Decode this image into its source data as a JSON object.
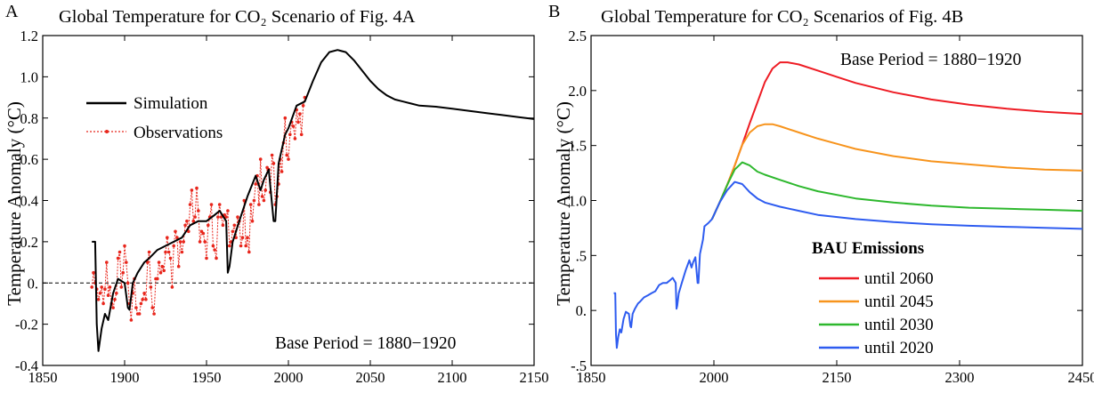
{
  "chart_data": [
    {
      "type": "line",
      "panel_letter": "A",
      "title": "Global Temperature for CO₂ Scenario of Fig. 4A",
      "xlabel": "",
      "ylabel": "Temperature Anomaly (°C)",
      "xlim": [
        1850,
        2150
      ],
      "ylim": [
        -0.4,
        1.2
      ],
      "x_ticks": [
        "1850",
        "1900",
        "1950",
        "2000",
        "2050",
        "2100",
        "2150"
      ],
      "y_ticks": [
        "-0.4",
        "-0.2",
        "0.",
        "0.2",
        "0.4",
        "0.6",
        "0.8",
        "1.0",
        "1.2"
      ],
      "zero_line": true,
      "annotation": "Base Period = 1880−1920",
      "legend_placement": "upper-left",
      "series": [
        {
          "name": "Simulation",
          "color": "#000000",
          "style": "solid",
          "x": [
            1880,
            1882,
            1883,
            1884,
            1886,
            1888,
            1890,
            1893,
            1896,
            1900,
            1902,
            1903,
            1905,
            1908,
            1912,
            1915,
            1920,
            1925,
            1930,
            1935,
            1940,
            1945,
            1950,
            1955,
            1958,
            1962,
            1963,
            1964,
            1966,
            1970,
            1975,
            1980,
            1983,
            1985,
            1988,
            1991,
            1992,
            1994,
            1998,
            2000,
            2005,
            2010,
            2015,
            2020,
            2025,
            2030,
            2035,
            2040,
            2045,
            2050,
            2055,
            2060,
            2065,
            2070,
            2075,
            2080,
            2090,
            2100,
            2110,
            2120,
            2130,
            2140,
            2150
          ],
          "y": [
            0.2,
            0.2,
            -0.2,
            -0.33,
            -0.22,
            -0.15,
            -0.18,
            -0.05,
            0.02,
            0.0,
            -0.12,
            -0.13,
            0.0,
            0.05,
            0.1,
            0.12,
            0.16,
            0.18,
            0.2,
            0.22,
            0.28,
            0.3,
            0.3,
            0.33,
            0.35,
            0.3,
            0.05,
            0.08,
            0.2,
            0.3,
            0.42,
            0.52,
            0.45,
            0.5,
            0.55,
            0.3,
            0.3,
            0.58,
            0.72,
            0.75,
            0.86,
            0.88,
            0.98,
            1.07,
            1.12,
            1.13,
            1.12,
            1.08,
            1.03,
            0.98,
            0.94,
            0.91,
            0.89,
            0.88,
            0.87,
            0.86,
            0.855,
            0.845,
            0.835,
            0.825,
            0.815,
            0.805,
            0.795
          ]
        },
        {
          "name": "Observations",
          "color": "#e8261c",
          "style": "dotted-with-markers",
          "x": [
            1880,
            1881,
            1882,
            1883,
            1884,
            1885,
            1886,
            1887,
            1888,
            1889,
            1890,
            1891,
            1892,
            1893,
            1894,
            1895,
            1896,
            1897,
            1898,
            1899,
            1900,
            1901,
            1902,
            1903,
            1904,
            1905,
            1906,
            1907,
            1908,
            1909,
            1910,
            1911,
            1912,
            1913,
            1914,
            1915,
            1916,
            1917,
            1918,
            1919,
            1920,
            1921,
            1922,
            1923,
            1924,
            1925,
            1926,
            1927,
            1928,
            1929,
            1930,
            1931,
            1932,
            1933,
            1934,
            1935,
            1936,
            1937,
            1938,
            1939,
            1940,
            1941,
            1942,
            1943,
            1944,
            1945,
            1946,
            1947,
            1948,
            1949,
            1950,
            1951,
            1952,
            1953,
            1954,
            1955,
            1956,
            1957,
            1958,
            1959,
            1960,
            1961,
            1962,
            1963,
            1964,
            1965,
            1966,
            1967,
            1968,
            1969,
            1970,
            1971,
            1972,
            1973,
            1974,
            1975,
            1976,
            1977,
            1978,
            1979,
            1980,
            1981,
            1982,
            1983,
            1984,
            1985,
            1986,
            1987,
            1988,
            1989,
            1990,
            1991,
            1992,
            1993,
            1994,
            1995,
            1996,
            1997,
            1998,
            1999,
            2000,
            2001,
            2002,
            2003,
            2004,
            2005,
            2006,
            2007,
            2008,
            2009,
            2010
          ],
          "y": [
            -0.02,
            0.05,
            0.0,
            -0.03,
            -0.08,
            -0.05,
            -0.02,
            -0.1,
            -0.03,
            0.1,
            -0.06,
            -0.02,
            -0.1,
            -0.12,
            -0.08,
            -0.05,
            0.12,
            0.15,
            -0.02,
            0.05,
            0.18,
            0.1,
            0.0,
            -0.1,
            -0.18,
            -0.05,
            0.02,
            -0.12,
            -0.15,
            -0.15,
            -0.1,
            -0.08,
            -0.05,
            -0.08,
            0.1,
            0.15,
            -0.02,
            -0.12,
            -0.15,
            0.02,
            0.02,
            0.1,
            0.05,
            0.08,
            0.06,
            0.15,
            0.22,
            0.15,
            0.12,
            -0.02,
            0.18,
            0.25,
            0.22,
            0.08,
            0.2,
            0.15,
            0.2,
            0.28,
            0.3,
            0.25,
            0.38,
            0.45,
            0.3,
            0.32,
            0.46,
            0.35,
            0.2,
            0.25,
            0.24,
            0.2,
            0.12,
            0.28,
            0.32,
            0.38,
            0.18,
            0.16,
            0.12,
            0.32,
            0.38,
            0.32,
            0.28,
            0.33,
            0.32,
            0.35,
            0.18,
            0.2,
            0.25,
            0.28,
            0.22,
            0.32,
            0.3,
            0.18,
            0.22,
            0.4,
            0.18,
            0.22,
            0.15,
            0.38,
            0.3,
            0.4,
            0.48,
            0.52,
            0.38,
            0.6,
            0.42,
            0.4,
            0.45,
            0.56,
            0.55,
            0.44,
            0.62,
            0.58,
            0.38,
            0.42,
            0.48,
            0.6,
            0.54,
            0.68,
            0.8,
            0.62,
            0.6,
            0.72,
            0.78,
            0.76,
            0.7,
            0.84,
            0.78,
            0.82,
            0.72,
            0.86,
            0.9
          ]
        }
      ]
    },
    {
      "type": "line",
      "panel_letter": "B",
      "title": "Global Temperature for CO₂ Scenarios of Fig. 4B",
      "xlabel": "",
      "ylabel": "Temperature Anomaly (°C)",
      "xlim": [
        1850,
        2500
      ],
      "ylim": [
        -0.5,
        2.7
      ],
      "x_ticks": [
        "1850",
        "2000",
        "2150",
        "2300",
        "2450"
      ],
      "y_ticks": [
        "-.5",
        "0.",
        ".5",
        "1.0",
        "1.5",
        "2.0",
        "2.5"
      ],
      "annotation": "Base Period = 1880−1920",
      "legend_title": "BAU Emissions",
      "legend_placement": "lower-right",
      "history": {
        "x": [
          1880,
          1882,
          1883,
          1884,
          1886,
          1888,
          1890,
          1893,
          1896,
          1900,
          1902,
          1903,
          1905,
          1908,
          1912,
          1915,
          1920,
          1925,
          1930,
          1935,
          1940,
          1945,
          1950,
          1955,
          1958,
          1962,
          1963,
          1964,
          1966,
          1970,
          1975,
          1980,
          1983,
          1985,
          1988,
          1991,
          1992,
          1994,
          1998,
          2000,
          2005,
          2010
        ],
        "y": [
          0.2,
          0.2,
          -0.2,
          -0.33,
          -0.22,
          -0.15,
          -0.18,
          -0.05,
          0.02,
          0.0,
          -0.12,
          -0.13,
          0.0,
          0.05,
          0.1,
          0.12,
          0.16,
          0.18,
          0.2,
          0.22,
          0.28,
          0.3,
          0.3,
          0.33,
          0.35,
          0.3,
          0.05,
          0.08,
          0.2,
          0.3,
          0.42,
          0.52,
          0.45,
          0.5,
          0.55,
          0.3,
          0.3,
          0.58,
          0.72,
          0.85,
          0.88,
          0.92
        ]
      },
      "series": [
        {
          "name": "until 2060",
          "color": "#ee1c24",
          "x": [
            2010,
            2020,
            2030,
            2040,
            2050,
            2060,
            2070,
            2080,
            2090,
            2100,
            2110,
            2125,
            2150,
            2175,
            2200,
            2250,
            2300,
            2350,
            2400,
            2450,
            2500
          ],
          "y": [
            0.92,
            1.08,
            1.25,
            1.44,
            1.64,
            1.85,
            2.05,
            2.25,
            2.38,
            2.44,
            2.44,
            2.42,
            2.36,
            2.3,
            2.24,
            2.15,
            2.08,
            2.03,
            1.99,
            1.96,
            1.94
          ]
        },
        {
          "name": "until 2045",
          "color": "#f7941d",
          "x": [
            2010,
            2020,
            2030,
            2040,
            2045,
            2050,
            2060,
            2070,
            2080,
            2090,
            2100,
            2125,
            2150,
            2175,
            2200,
            2250,
            2300,
            2350,
            2400,
            2450,
            2500
          ],
          "y": [
            0.92,
            1.08,
            1.25,
            1.44,
            1.54,
            1.64,
            1.76,
            1.82,
            1.84,
            1.84,
            1.82,
            1.76,
            1.7,
            1.65,
            1.6,
            1.53,
            1.48,
            1.45,
            1.42,
            1.4,
            1.39
          ]
        },
        {
          "name": "until 2030",
          "color": "#2eb82e",
          "x": [
            2010,
            2020,
            2030,
            2040,
            2050,
            2060,
            2070,
            2080,
            2100,
            2125,
            2150,
            2200,
            2250,
            2300,
            2350,
            2400,
            2450,
            2500
          ],
          "y": [
            0.92,
            1.08,
            1.25,
            1.4,
            1.47,
            1.44,
            1.38,
            1.35,
            1.3,
            1.24,
            1.19,
            1.12,
            1.08,
            1.05,
            1.03,
            1.02,
            1.01,
            1.0
          ]
        },
        {
          "name": "until 2020",
          "color": "#2e5cf0",
          "x": [
            2010,
            2020,
            2030,
            2040,
            2050,
            2060,
            2070,
            2080,
            2100,
            2125,
            2150,
            2200,
            2250,
            2300,
            2350,
            2400,
            2450,
            2500
          ],
          "y": [
            0.92,
            1.08,
            1.2,
            1.28,
            1.26,
            1.18,
            1.12,
            1.08,
            1.04,
            1.0,
            0.96,
            0.92,
            0.89,
            0.87,
            0.855,
            0.845,
            0.835,
            0.825
          ]
        }
      ]
    }
  ]
}
